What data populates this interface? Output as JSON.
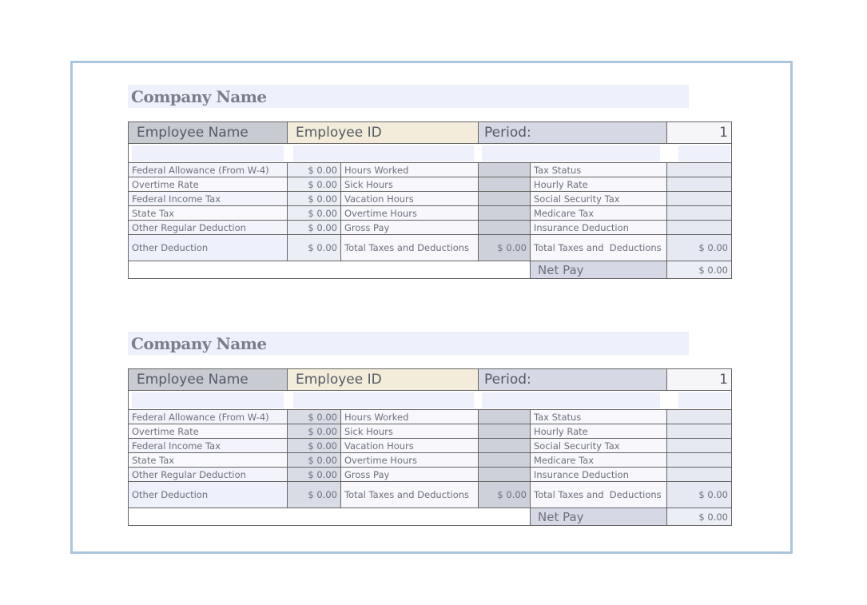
{
  "stubs": [
    {
      "company_name": "Company Name",
      "employee_name": "Employee Name",
      "employee_id": "Employee ID",
      "period": "Period:",
      "period_value": "1",
      "rows": [
        {
          "left_label": "Federal Allowance (From W-4)",
          "left_value": "$ 0.00",
          "mid_label": "Hours Worked",
          "right_label": "Tax Status"
        },
        {
          "left_label": "Overtime Rate",
          "left_value": "$ 0.00",
          "mid_label": "Sick Hours",
          "right_label": "Hourly Rate"
        },
        {
          "left_label": "Federal Income Tax",
          "left_value": "$ 0.00",
          "mid_label": "Vacation Hours",
          "right_label": "Social Security Tax"
        },
        {
          "left_label": "State Tax",
          "left_value": "$ 0.00",
          "mid_label": "Overtime Hours",
          "right_label": "Medicare Tax"
        },
        {
          "left_label": "Other Regular Deduction",
          "left_value": "$ 0.00",
          "mid_label": "Gross Pay",
          "right_label": "Insurance Deduction"
        },
        {
          "left_label": "Other Deduction",
          "left_value": "$ 0.00",
          "mid_label": "Total Taxes and Deductions",
          "mid_value": "$ 0.00",
          "right_label": "Total Taxes and  Deductions",
          "right_value": "$ 0.00"
        }
      ],
      "net_pay_label": "Net Pay",
      "net_pay_value": "$ 0.00"
    },
    {
      "company_name": "Company Name",
      "employee_name": "Employee Name",
      "employee_id": "Employee ID",
      "period": "Period:",
      "period_value": "1",
      "rows": [
        {
          "left_label": "Federal Allowance (From W-4)",
          "left_value": "$ 0.00",
          "mid_label": "Hours Worked",
          "right_label": "Tax Status"
        },
        {
          "left_label": "Overtime Rate",
          "left_value": "$ 0.00",
          "mid_label": "Sick Hours",
          "right_label": "Hourly Rate"
        },
        {
          "left_label": "Federal Income Tax",
          "left_value": "$ 0.00",
          "mid_label": "Vacation Hours",
          "right_label": "Social Security Tax"
        },
        {
          "left_label": "State Tax",
          "left_value": "$ 0.00",
          "mid_label": "Overtime Hours",
          "right_label": "Medicare Tax"
        },
        {
          "left_label": "Other Regular Deduction",
          "left_value": "$ 0.00",
          "mid_label": "Gross Pay",
          "right_label": "Insurance Deduction"
        },
        {
          "left_label": "Other Deduction",
          "left_value": "$ 0.00",
          "mid_label": "Total Taxes and Deductions",
          "mid_value": "$ 0.00",
          "right_label": "Total Taxes and  Deductions",
          "right_value": "$ 0.00"
        }
      ],
      "net_pay_label": "Net Pay",
      "net_pay_value": "$ 0.00"
    }
  ]
}
